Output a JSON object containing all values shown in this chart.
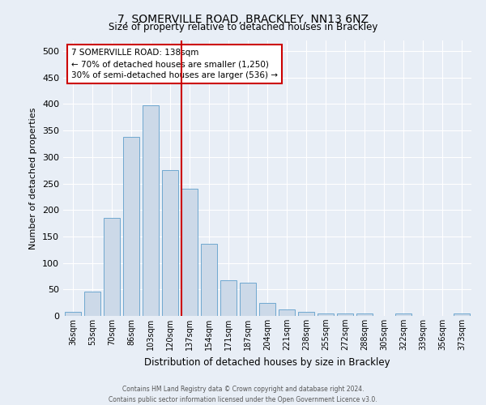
{
  "title": "7, SOMERVILLE ROAD, BRACKLEY, NN13 6NZ",
  "subtitle": "Size of property relative to detached houses in Brackley",
  "xlabel": "Distribution of detached houses by size in Brackley",
  "ylabel": "Number of detached properties",
  "bar_labels": [
    "36sqm",
    "53sqm",
    "70sqm",
    "86sqm",
    "103sqm",
    "120sqm",
    "137sqm",
    "154sqm",
    "171sqm",
    "187sqm",
    "204sqm",
    "221sqm",
    "238sqm",
    "255sqm",
    "272sqm",
    "288sqm",
    "305sqm",
    "322sqm",
    "339sqm",
    "356sqm",
    "373sqm"
  ],
  "bar_values": [
    8,
    46,
    185,
    338,
    398,
    275,
    240,
    136,
    68,
    63,
    25,
    12,
    8,
    4,
    4,
    4,
    0,
    4,
    0,
    0,
    4
  ],
  "bar_color": "#ccd9e8",
  "bar_edge_color": "#6fa8d0",
  "vline_color": "#cc0000",
  "annotation_line1": "7 SOMERVILLE ROAD: 138sqm",
  "annotation_line2": "← 70% of detached houses are smaller (1,250)",
  "annotation_line3": "30% of semi-detached houses are larger (536) →",
  "annotation_box_color": "#ffffff",
  "annotation_box_edge": "#cc0000",
  "background_color": "#e8eef6",
  "plot_bg_color": "#e8eef6",
  "footer_line1": "Contains HM Land Registry data © Crown copyright and database right 2024.",
  "footer_line2": "Contains public sector information licensed under the Open Government Licence v3.0.",
  "ylim": [
    0,
    520
  ],
  "yticks": [
    0,
    50,
    100,
    150,
    200,
    250,
    300,
    350,
    400,
    450,
    500
  ]
}
